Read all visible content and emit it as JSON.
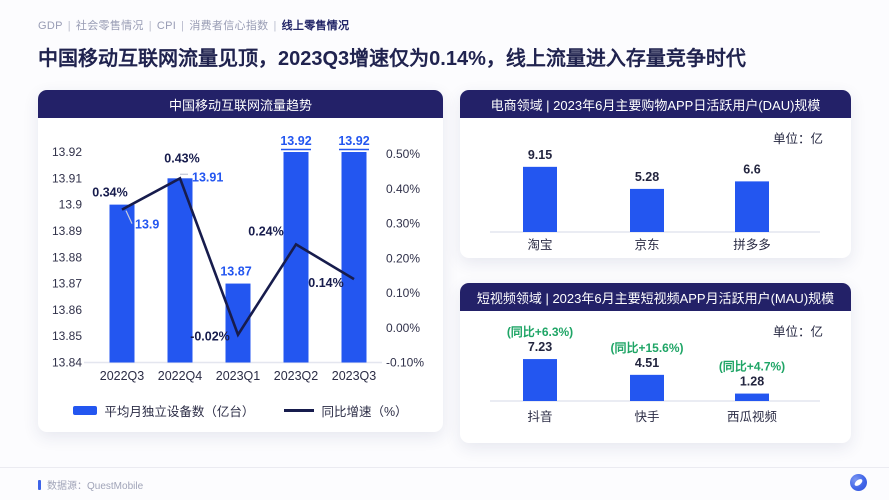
{
  "nav": {
    "items": [
      "GDP",
      "社会零售情况",
      "CPI",
      "消费者信心指数",
      "线上零售情况"
    ],
    "active_index": 4,
    "separator": "|"
  },
  "title": "中国移动互联网流量见顶，2023Q3增速仅为0.14%，线上流量进入存量竞争时代",
  "colors": {
    "accent_blue": "#2356F0",
    "navy_header": "#232168",
    "line_navy": "#171C4D",
    "green": "#1FA566",
    "axis_text": "#30314A",
    "category_text": "#2B2C45",
    "value_text": "#23253F",
    "leader_gray": "#C9CDDB",
    "baseline_gray": "#E4E6EF"
  },
  "cards": {
    "traffic": {
      "header": "中国移动互联网流量趋势",
      "legend": [
        "平均月独立设备数（亿台）",
        "同比增速（%）"
      ]
    },
    "dau": {
      "header": "电商领域 | 2023年6月主要购物APP日活跃用户(DAU)规模",
      "unit": "单位：亿"
    },
    "mau": {
      "header": "短视频领域 | 2023年6月主要短视频APP月活跃用户(MAU)规模",
      "unit": "单位：亿"
    }
  },
  "chart_data": [
    {
      "id": "traffic-trend",
      "type": "bar",
      "subtype": "combo-bar-line",
      "title": "中国移动互联网流量趋势",
      "categories": [
        "2022Q3",
        "2022Q4",
        "2023Q1",
        "2023Q2",
        "2023Q3"
      ],
      "series": [
        {
          "name": "平均月独立设备数（亿台）",
          "type": "bar",
          "axis": "left",
          "values": [
            13.9,
            13.91,
            13.87,
            13.92,
            13.92
          ],
          "labels": [
            "13.9",
            "13.91",
            "13.87",
            "13.92",
            "13.92"
          ]
        },
        {
          "name": "同比增速（%）",
          "type": "line",
          "axis": "right",
          "values": [
            0.34,
            0.43,
            -0.02,
            0.24,
            0.14
          ],
          "labels": [
            "0.34%",
            "0.43%",
            "-0.02%",
            "0.24%",
            "0.14%"
          ]
        }
      ],
      "left_axis": {
        "min": 13.84,
        "max": 13.92,
        "ticks": [
          "13.92",
          "13.91",
          "13.9",
          "13.89",
          "13.88",
          "13.87",
          "13.86",
          "13.85",
          "13.84"
        ]
      },
      "right_axis": {
        "min": -0.1,
        "max": 0.5,
        "ticks": [
          "0.50%",
          "0.40%",
          "0.30%",
          "0.20%",
          "0.10%",
          "0.00%",
          "-0.10%"
        ]
      },
      "grid": false,
      "legend_position": "bottom"
    },
    {
      "id": "dau",
      "type": "bar",
      "title": "电商领域 | 2023年6月主要购物APP日活跃用户(DAU)规模",
      "unit": "单位：亿",
      "categories": [
        "淘宝",
        "京东",
        "拼多多"
      ],
      "values": [
        9.15,
        5.28,
        6.6
      ],
      "labels": [
        "9.15",
        "5.28",
        "6.6"
      ],
      "grid": false
    },
    {
      "id": "mau",
      "type": "bar",
      "title": "短视频领域 | 2023年6月主要短视频APP月活跃用户(MAU)规模",
      "unit": "单位：亿",
      "categories": [
        "抖音",
        "快手",
        "西瓜视频"
      ],
      "values": [
        7.23,
        4.51,
        1.28
      ],
      "labels": [
        "7.23",
        "4.51",
        "1.28"
      ],
      "annotations": [
        "(同比+6.3%)",
        "(同比+15.6%)",
        "(同比+4.7%)"
      ],
      "grid": false
    }
  ],
  "footer": {
    "source_label": "数据源：QuestMobile"
  }
}
